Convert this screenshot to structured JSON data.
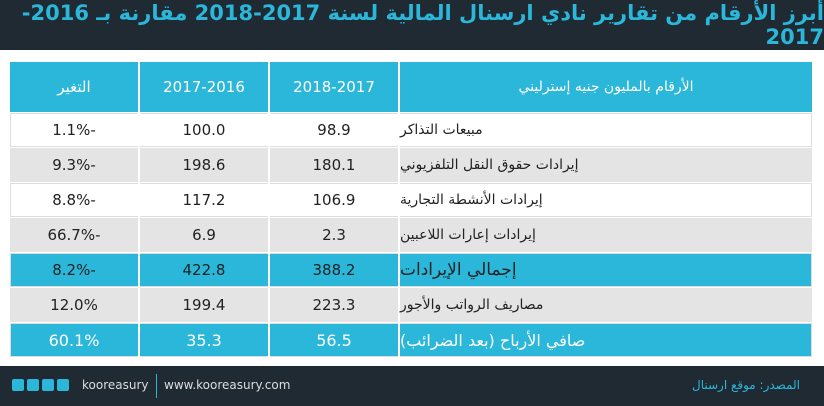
{
  "header": {
    "title": "أبرز الأرقام من تقارير نادي ارسنال المالية لسنة 2017-2018 مقارنة بـ 2016-2017"
  },
  "table": {
    "columns": [
      "الأرقام بالمليون جنيه إسترليني",
      "2018-2017",
      "2017-2016",
      "التغير"
    ],
    "rows": [
      [
        "مبيعات التذاكر",
        "98.9",
        "100.0",
        "1.1%-"
      ],
      [
        "إيرادات حقوق النقل التلفزيوني",
        "180.1",
        "198.6",
        "9.3%-"
      ],
      [
        "إيرادات الأنشطة التجارية",
        "106.9",
        "117.2",
        "8.8%-"
      ],
      [
        "إيرادات إعارات اللاعبين",
        "2.3",
        "6.9",
        "66.7%-"
      ],
      [
        "إجمالي الإيرادات",
        "388.2",
        "422.8",
        "8.2%-"
      ],
      [
        "مصاريف الرواتب والأجور",
        "223.3",
        "199.4",
        "12.0%"
      ],
      [
        "صافي الأرباح (بعد الضرائب)",
        "56.5",
        "35.3",
        "60.1%"
      ]
    ]
  },
  "footer": {
    "brand": "kooreasury",
    "website": "www.kooreasury.com",
    "source": "المصدر: موقع ارسنال"
  }
}
